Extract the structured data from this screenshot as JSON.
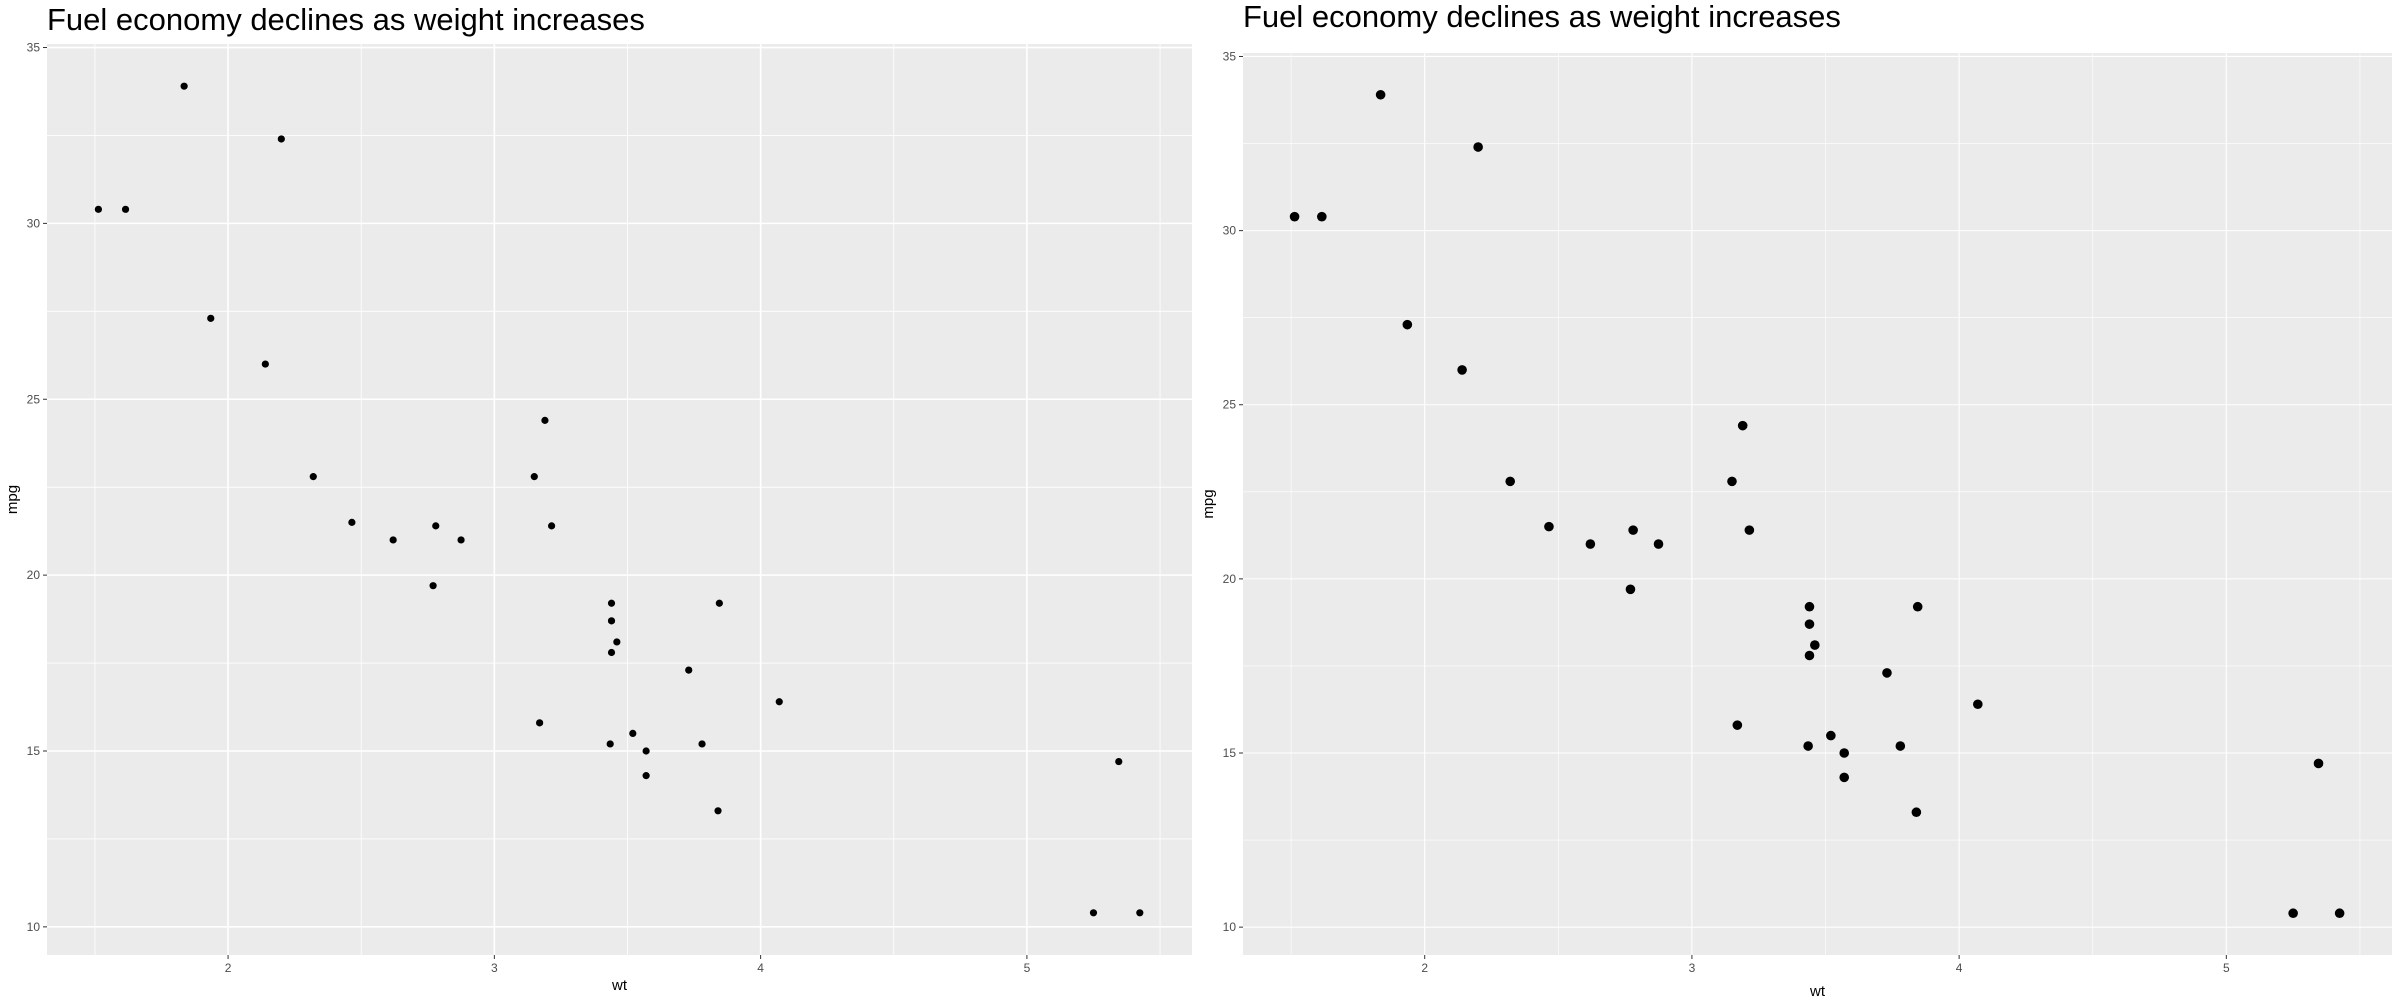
{
  "chart_data": [
    {
      "type": "scatter",
      "title": "Fuel economy declines as weight increases",
      "xlabel": "wt",
      "ylabel": "mpg",
      "xlim": [
        1.32,
        5.62
      ],
      "ylim": [
        9.2,
        35.1
      ],
      "xticks": [
        2,
        3,
        4,
        5
      ],
      "yticks": [
        10,
        15,
        20,
        25,
        30,
        35
      ],
      "grid": true,
      "background": "#ebebeb",
      "gridline_color": "#ffffff",
      "point_color": "#000000",
      "x": [
        2.62,
        2.875,
        2.32,
        3.215,
        3.44,
        3.46,
        3.57,
        3.19,
        3.15,
        3.44,
        3.44,
        4.07,
        3.73,
        3.78,
        5.25,
        5.424,
        5.345,
        2.2,
        1.615,
        1.835,
        2.465,
        3.52,
        3.435,
        3.84,
        3.845,
        1.935,
        2.14,
        1.513,
        3.17,
        2.77,
        3.57,
        2.78
      ],
      "y": [
        21.0,
        21.0,
        22.8,
        21.4,
        18.7,
        18.1,
        14.3,
        24.4,
        22.8,
        19.2,
        17.8,
        16.4,
        17.3,
        15.2,
        10.4,
        10.4,
        14.7,
        32.4,
        30.4,
        33.9,
        21.5,
        15.5,
        15.2,
        13.3,
        19.2,
        27.3,
        26.0,
        30.4,
        15.8,
        19.7,
        15.0,
        21.4
      ]
    },
    {
      "type": "scatter",
      "title": "Fuel economy declines as weight increases",
      "xlabel": "wt",
      "ylabel": "mpg",
      "xlim": [
        1.32,
        5.62
      ],
      "ylim": [
        9.2,
        35.1
      ],
      "xticks": [
        2,
        3,
        4,
        5
      ],
      "yticks": [
        10,
        15,
        20,
        25,
        30,
        35
      ],
      "grid": true,
      "background": "#ebebeb",
      "gridline_color": "#ffffff",
      "point_color": "#000000",
      "x": [
        2.62,
        2.875,
        2.32,
        3.215,
        3.44,
        3.46,
        3.57,
        3.19,
        3.15,
        3.44,
        3.44,
        4.07,
        3.73,
        3.78,
        5.25,
        5.424,
        5.345,
        2.2,
        1.615,
        1.835,
        2.465,
        3.52,
        3.435,
        3.84,
        3.845,
        1.935,
        2.14,
        1.513,
        3.17,
        2.77,
        3.57,
        2.78
      ],
      "y": [
        21.0,
        21.0,
        22.8,
        21.4,
        18.7,
        18.1,
        14.3,
        24.4,
        22.8,
        19.2,
        17.8,
        16.4,
        17.3,
        15.2,
        10.4,
        10.4,
        14.7,
        32.4,
        30.4,
        33.9,
        21.5,
        15.5,
        15.2,
        13.3,
        19.2,
        27.3,
        26.0,
        30.4,
        15.8,
        19.7,
        15.0,
        21.4
      ]
    }
  ]
}
